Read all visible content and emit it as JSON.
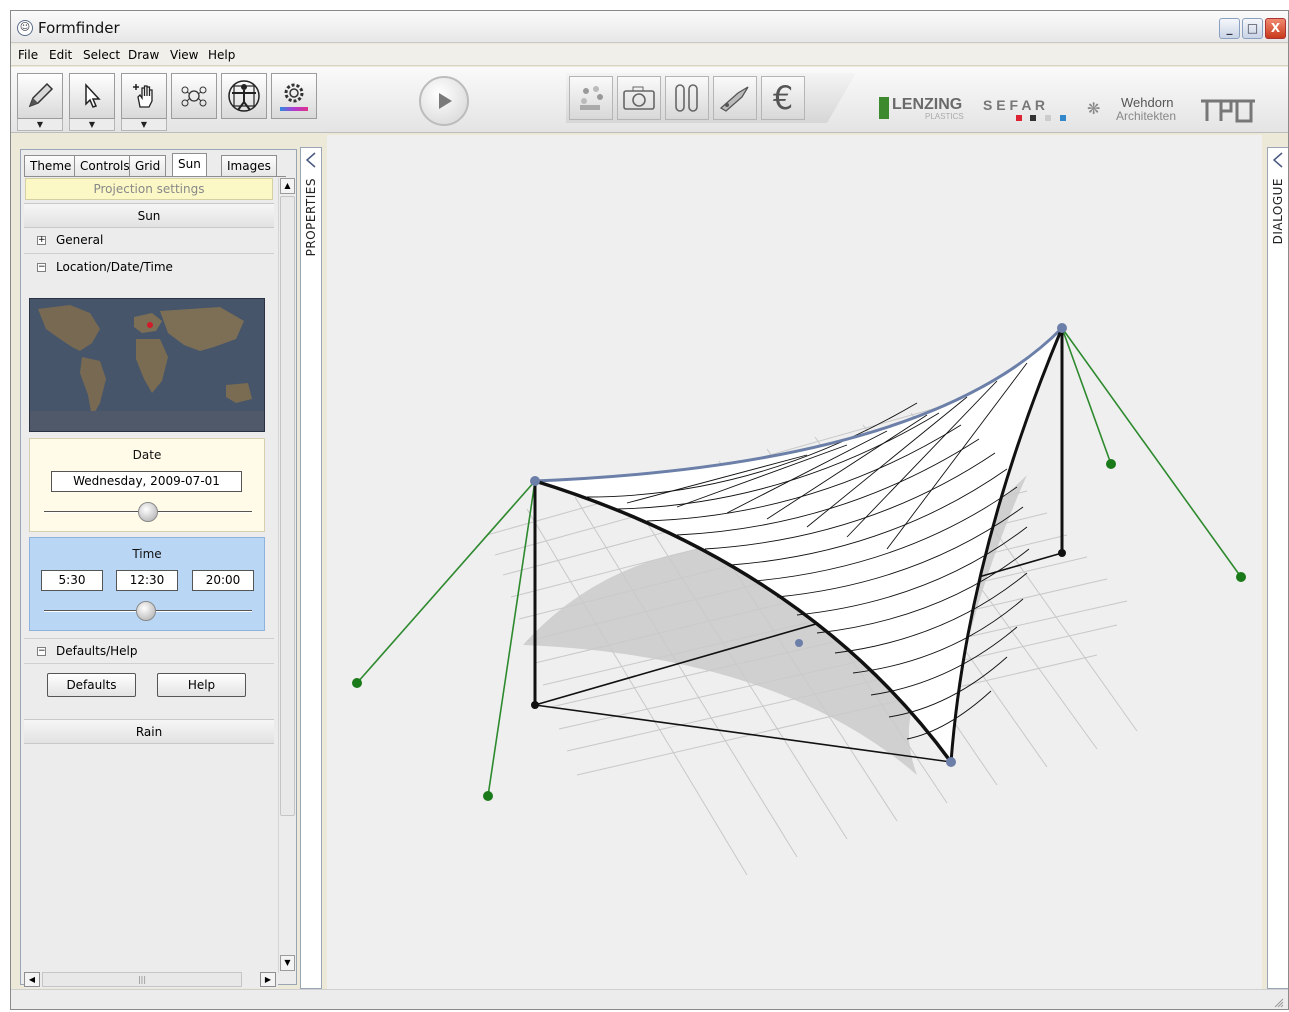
{
  "window": {
    "title": "Formfinder",
    "controls": [
      "_",
      "□",
      "X"
    ]
  },
  "menu": [
    "File",
    "Edit",
    "Select",
    "Draw",
    "View",
    "Help"
  ],
  "toolbar": {
    "tools": [
      "pencil-icon",
      "pointer-icon",
      "hand-icon",
      "nodes-icon",
      "vitruvian-icon",
      "settings-icon"
    ],
    "dropdown_marker": "▼",
    "play_icon": "play-icon",
    "strip_tools": [
      "material-icon",
      "camera-icon",
      "columns-icon",
      "knife-icon",
      "euro-icon"
    ],
    "euro_symbol": "€"
  },
  "logos": {
    "lenzing": "LENZING",
    "lenzing_sub": "PLASTICS",
    "sefar": "S E F A R",
    "wehdorn_line1": "Wehdorn",
    "wehdorn_line2": "Architekten",
    "tu": "tu"
  },
  "panel": {
    "tabs": [
      "Theme",
      "Controls",
      "Grid",
      "Sun",
      "Images"
    ],
    "active_tab": "Sun",
    "projection": "Projection settings",
    "sun_header": "Sun",
    "general": "General",
    "location": "Location/Date/Time",
    "date_label": "Date",
    "date_value": "Wednesday, 2009-07-01",
    "date_slider_level": 0.5,
    "time_label": "Time",
    "time_start": "5:30",
    "time_current": "12:30",
    "time_end": "20:00",
    "time_slider_level": 0.49,
    "defaults_help": "Defaults/Help",
    "defaults_button": "Defaults",
    "help_button": "Help",
    "rain_header": "Rain",
    "expand_symbol": "+",
    "collapse_symbol": "−"
  },
  "side_tabs": {
    "properties": "PROPERTIES",
    "dialogue": "DIALOGUE"
  },
  "colors": {
    "membrane_edge": "#6b7fa8",
    "anchor": "#1a7a1a",
    "time_box": "#b9d6f5",
    "date_box": "#fffbe8",
    "projection_box": "#fbf8c6",
    "map_marker": "#d11a2a"
  }
}
